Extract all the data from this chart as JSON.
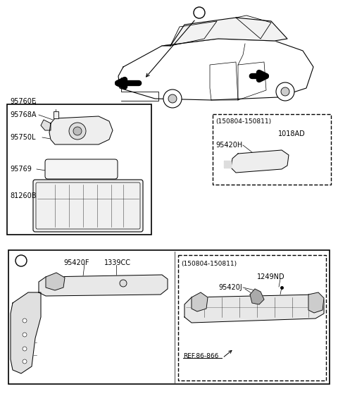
{
  "bg_color": "#ffffff",
  "line_color": "#000000",
  "parts": {
    "top_left_box": {
      "label_95760E": "95760E",
      "label_95768A": "95768A",
      "label_95750L": "95750L",
      "label_95769": "95769",
      "label_81260B": "81260B"
    },
    "top_right_box": {
      "date_range": "(150804-150811)",
      "label_1018AD": "1018AD",
      "label_95420H": "95420H"
    },
    "bottom_box": {
      "circle_label": "a",
      "label_95420F": "95420F",
      "label_1339CC": "1339CC",
      "date_range": "(150804-150811)",
      "label_95420J": "95420J",
      "label_1249ND": "1249ND",
      "label_ref": "REF.86-866"
    }
  }
}
